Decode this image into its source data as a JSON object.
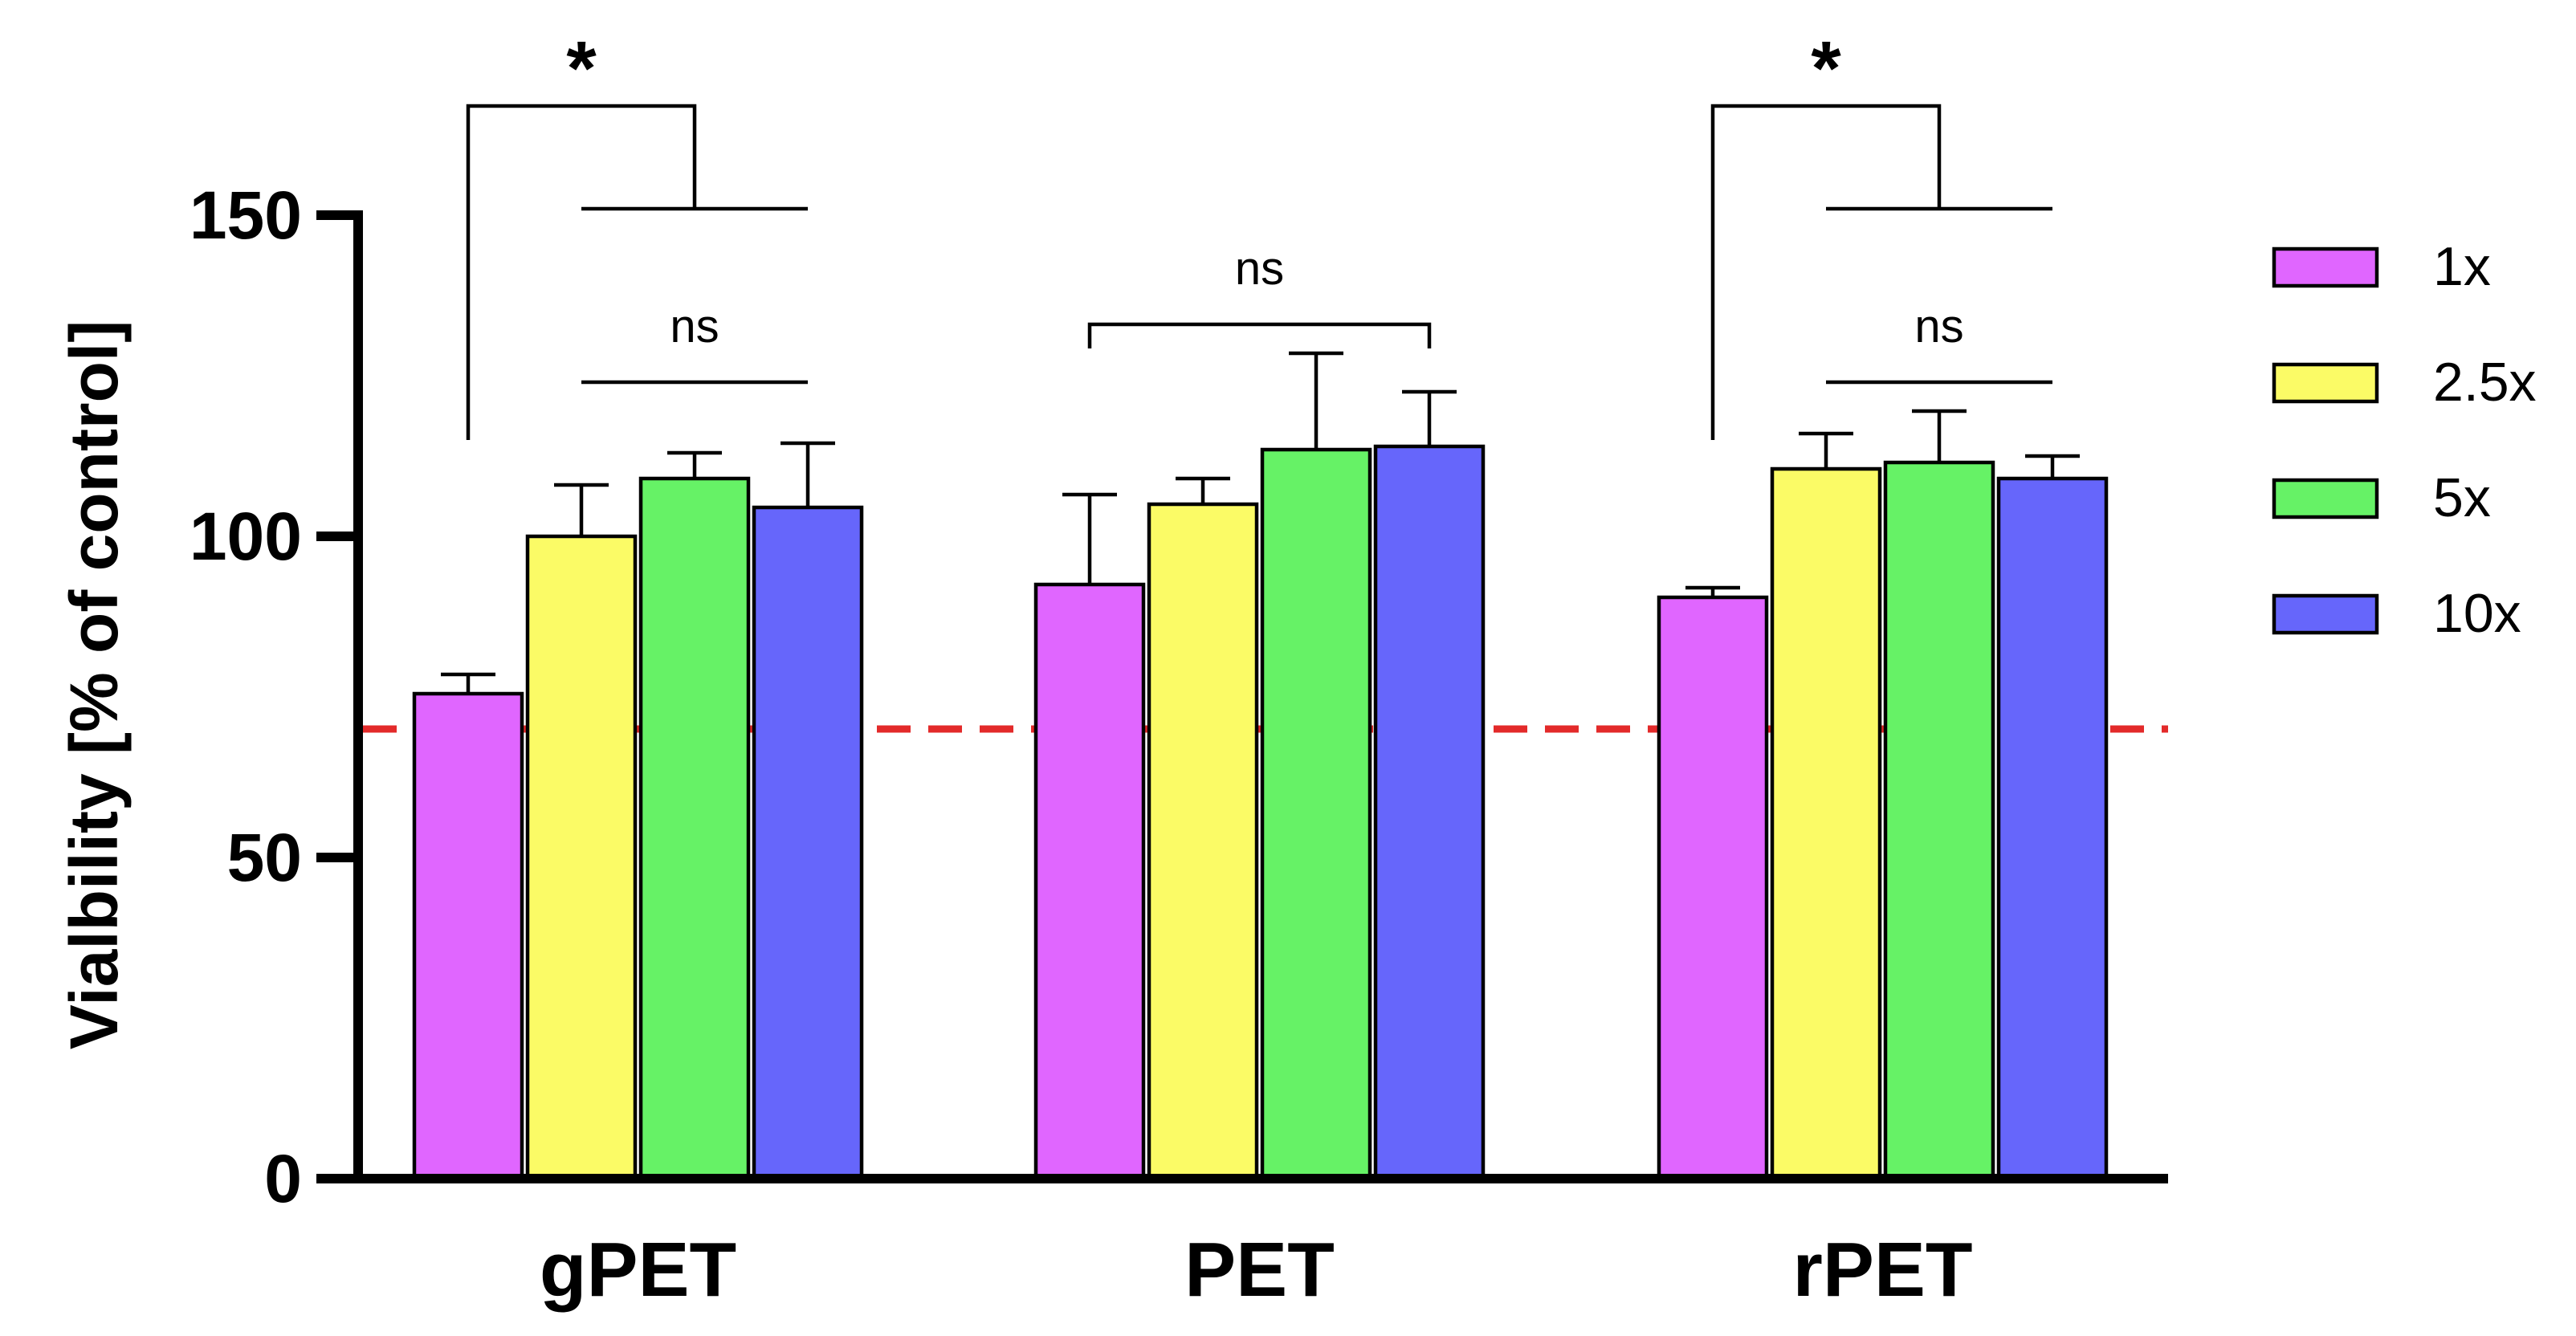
{
  "chart_data": {
    "type": "bar",
    "title": "",
    "xlabel": "",
    "ylabel": "Vialbility [% of control]",
    "ylim": [
      0,
      150
    ],
    "yticks": [
      0,
      50,
      100,
      150
    ],
    "categories": [
      "gPET",
      "PET",
      "rPET"
    ],
    "series": [
      {
        "name": "1x",
        "color": "#e066ff",
        "values": [
          75.5,
          92.5,
          90.5
        ],
        "errors": [
          3,
          14,
          1.5
        ]
      },
      {
        "name": "2.5x",
        "color": "#fbfb66",
        "values": [
          100,
          105,
          110.5
        ],
        "errors": [
          8,
          4,
          5.5
        ]
      },
      {
        "name": "5x",
        "color": "#66f266",
        "values": [
          109,
          113.5,
          111.5
        ],
        "errors": [
          4,
          15,
          8
        ]
      },
      {
        "name": "10x",
        "color": "#6666fb",
        "values": [
          104.5,
          114,
          109
        ],
        "errors": [
          10,
          8.5,
          3.5
        ]
      }
    ],
    "threshold": {
      "value": 70,
      "color": "#e32a2a",
      "style": "dashed"
    },
    "annotations": [
      {
        "category": "gPET",
        "type": "bracket-to-group",
        "label": "*",
        "from_series": 0,
        "group_series": [
          1,
          2,
          3
        ],
        "group_level": 151,
        "top_level": 167,
        "start_level": 115
      },
      {
        "category": "gPET",
        "type": "group-line",
        "label": "ns",
        "group_series": [
          1,
          2,
          3
        ],
        "level": 124
      },
      {
        "category": "PET",
        "type": "bracket",
        "label": "ns",
        "group_series": [
          0,
          1,
          2,
          3
        ],
        "level": 133
      },
      {
        "category": "rPET",
        "type": "bracket-to-group",
        "label": "*",
        "from_series": 0,
        "group_series": [
          1,
          2,
          3
        ],
        "group_level": 151,
        "top_level": 167,
        "start_level": 115
      },
      {
        "category": "rPET",
        "type": "group-line",
        "label": "ns",
        "group_series": [
          1,
          2,
          3
        ],
        "level": 124
      }
    ],
    "legend": "right"
  }
}
